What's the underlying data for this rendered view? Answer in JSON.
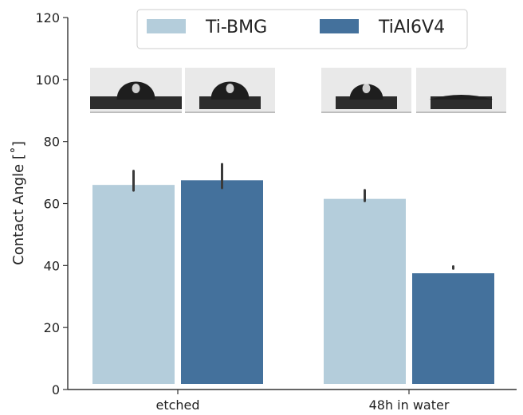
{
  "chart_data": {
    "type": "bar",
    "title": "",
    "xlabel": "",
    "ylabel": "Contact Angle [˚]",
    "ylim": [
      0,
      120
    ],
    "yticks": [
      0,
      20,
      40,
      60,
      80,
      100,
      120
    ],
    "grid": false,
    "legend_position": "top-center",
    "categories": [
      "etched",
      "48h in water"
    ],
    "series": [
      {
        "name": "Ti-BMG",
        "color": "#b4cddb",
        "values": [
          66,
          61.5
        ],
        "error_low": [
          64.2,
          60.8
        ],
        "error_high": [
          70.5,
          64.3
        ]
      },
      {
        "name": "TiAl6V4",
        "color": "#44719c",
        "values": [
          67.5,
          37.5
        ],
        "error_low": [
          65.0,
          39.0
        ],
        "error_high": [
          72.7,
          39.7
        ]
      }
    ],
    "inset_images": "droplet photographs above each bar (grayscale)"
  }
}
